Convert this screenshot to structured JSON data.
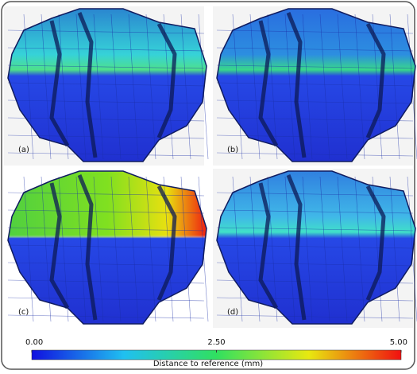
{
  "panels": [
    {
      "label": "(a)"
    },
    {
      "label": "(b)"
    },
    {
      "label": "(c)"
    },
    {
      "label": "(d)"
    }
  ],
  "colorbar": {
    "range": [
      0,
      5
    ],
    "ticks": [
      {
        "value": 0,
        "label": "0.00"
      },
      {
        "value": 2.5,
        "label": "2.50"
      },
      {
        "value": 5,
        "label": "5.00"
      }
    ],
    "label": "Distance to reference (mm)"
  }
}
